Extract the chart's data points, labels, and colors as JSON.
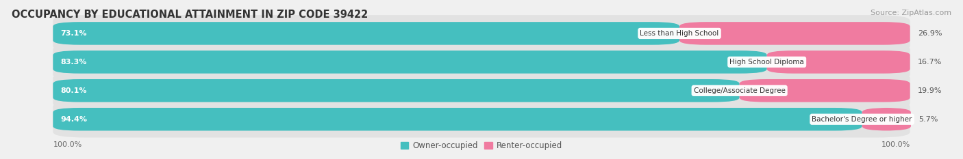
{
  "title": "OCCUPANCY BY EDUCATIONAL ATTAINMENT IN ZIP CODE 39422",
  "source": "Source: ZipAtlas.com",
  "categories": [
    "Less than High School",
    "High School Diploma",
    "College/Associate Degree",
    "Bachelor's Degree or higher"
  ],
  "owner_values": [
    73.1,
    83.3,
    80.1,
    94.4
  ],
  "renter_values": [
    26.9,
    16.7,
    19.9,
    5.7
  ],
  "owner_color": "#45BFBF",
  "renter_color": "#F07BA0",
  "background_color": "#f0f0f0",
  "bar_bg_color": "#e2e2e2",
  "title_fontsize": 10.5,
  "source_fontsize": 8,
  "label_fontsize": 8,
  "axis_label_fontsize": 8,
  "legend_fontsize": 8.5,
  "x_labels": [
    "100.0%",
    "100.0%"
  ],
  "owner_label": "Owner-occupied",
  "renter_label": "Renter-occupied"
}
